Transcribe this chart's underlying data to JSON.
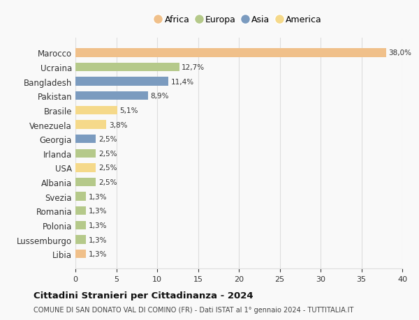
{
  "countries": [
    "Marocco",
    "Ucraina",
    "Bangladesh",
    "Pakistan",
    "Brasile",
    "Venezuela",
    "Georgia",
    "Irlanda",
    "USA",
    "Albania",
    "Svezia",
    "Romania",
    "Polonia",
    "Lussemburgo",
    "Libia"
  ],
  "values": [
    38.0,
    12.7,
    11.4,
    8.9,
    5.1,
    3.8,
    2.5,
    2.5,
    2.5,
    2.5,
    1.3,
    1.3,
    1.3,
    1.3,
    1.3
  ],
  "labels": [
    "38,0%",
    "12,7%",
    "11,4%",
    "8,9%",
    "5,1%",
    "3,8%",
    "2,5%",
    "2,5%",
    "2,5%",
    "2,5%",
    "1,3%",
    "1,3%",
    "1,3%",
    "1,3%",
    "1,3%"
  ],
  "continents": [
    "Africa",
    "Europa",
    "Asia",
    "Asia",
    "America",
    "America",
    "Asia",
    "Europa",
    "America",
    "Europa",
    "Europa",
    "Europa",
    "Europa",
    "Europa",
    "Africa"
  ],
  "colors": {
    "Africa": "#F0C08A",
    "Europa": "#B5C98A",
    "Asia": "#7B9BBF",
    "America": "#F5D98A"
  },
  "legend_order": [
    "Africa",
    "Europa",
    "Asia",
    "America"
  ],
  "title": "Cittadini Stranieri per Cittadinanza - 2024",
  "subtitle": "COMUNE DI SAN DONATO VAL DI COMINO (FR) - Dati ISTAT al 1° gennaio 2024 - TUTTITALIA.IT",
  "xlim": [
    0,
    40
  ],
  "xticks": [
    0,
    5,
    10,
    15,
    20,
    25,
    30,
    35,
    40
  ],
  "background_color": "#f9f9f9",
  "grid_color": "#dddddd"
}
